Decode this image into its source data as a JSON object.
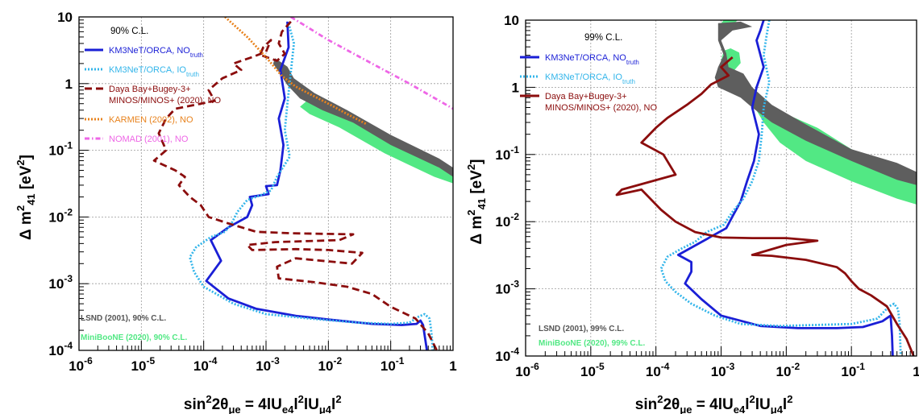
{
  "chart_data": [
    {
      "type": "line",
      "panel": "left",
      "cl_label": "90% C.L.",
      "xlabel": {
        "main": "sin",
        "sup1": "2",
        "main2": "2θ",
        "sub1": "μe",
        "main3": " = 4lU",
        "sub2": "e4",
        "main4": "l",
        "sup2": "2",
        "main5": "lU",
        "sub3": "μ4",
        "main6": "l",
        "sup3": "2"
      },
      "ylabel": {
        "main": "Δ m",
        "sup": "2",
        "sub": "41",
        "unit": " [eV",
        "unitsup": "2",
        "close": "]"
      },
      "xscale": "log",
      "yscale": "log",
      "xlim": [
        1e-06,
        1
      ],
      "ylim": [
        0.0001,
        10
      ],
      "xticks": [
        {
          "base": "10",
          "exp": "-6"
        },
        {
          "base": "10",
          "exp": "-5"
        },
        {
          "base": "10",
          "exp": "-4"
        },
        {
          "base": "10",
          "exp": "-3"
        },
        {
          "base": "10",
          "exp": "-2"
        },
        {
          "base": "10",
          "exp": "-1"
        },
        {
          "base": "1",
          "exp": ""
        }
      ],
      "yticks": [
        {
          "base": "10",
          "exp": "-4"
        },
        {
          "base": "10",
          "exp": "-3"
        },
        {
          "base": "10",
          "exp": "-2"
        },
        {
          "base": "10",
          "exp": "-1"
        },
        {
          "base": "1",
          "exp": ""
        },
        {
          "base": "10",
          "exp": ""
        }
      ],
      "grid": true,
      "legend": [
        {
          "label": "KM3NeT/ORCA, NO",
          "sub": "truth",
          "color": "#1a1fd6",
          "dash": "solid"
        },
        {
          "label": "KM3NeT/ORCA, IO",
          "sub": "truth",
          "color": "#33b5ea",
          "dash": "dotted"
        },
        {
          "label": "Daya Bay+Bugey-3+",
          "label2": "MINOS/MINOS+ (2020), NO",
          "color": "#8b0d0d",
          "dash": "dashed"
        },
        {
          "label": "KARMEN (2002), NO",
          "color": "#e8821c",
          "dash": "dotted",
          "textcolor": "#e8821c"
        },
        {
          "label": "NOMAD (2001), NO",
          "color": "#ee66e6",
          "dash": "dashdot",
          "textcolor": "#ee66e6"
        }
      ],
      "notes": [
        {
          "text": "LSND (2001), 90% C.L.",
          "color": "#555555"
        },
        {
          "text": "MiniBooNE (2020), 90% C.L.",
          "color": "#52e884"
        }
      ],
      "series": [
        {
          "name": "KM3NeT/ORCA, NO",
          "color": "#1a1fd6",
          "x": [
            0.0022,
            0.0023,
            0.0017,
            0.002,
            0.0016,
            0.0019,
            0.0017,
            0.0015,
            0.001,
            0.0011,
            0.00055,
            0.0006,
            0.0005,
            0.00025,
            0.00013,
            0.00019,
            0.00011,
            0.00025,
            0.0007,
            0.003,
            0.01,
            0.05,
            0.15,
            0.26,
            0.3,
            0.33,
            0.35,
            0.37,
            0.38
          ],
          "y": [
            8.5,
            3.5,
            1.6,
            0.6,
            0.3,
            0.12,
            0.05,
            0.03,
            0.029,
            0.022,
            0.02,
            0.015,
            0.01,
            0.007,
            0.0045,
            0.0022,
            0.0011,
            0.0006,
            0.00042,
            0.00033,
            0.00029,
            0.00025,
            0.00024,
            0.00025,
            0.00028,
            0.00024,
            0.00017,
            0.00012,
            0.0001
          ]
        },
        {
          "name": "KM3NeT/ORCA, IO",
          "color": "#33b5ea",
          "x": [
            0.0023,
            0.0028,
            0.0025,
            0.0022,
            0.002,
            0.0024,
            0.0015,
            0.0012,
            0.0008,
            0.0005,
            0.00035,
            0.00028,
            0.00022,
            0.00013,
            7.5e-05,
            6e-05,
            7e-05,
            0.0001,
            0.0003,
            0.001,
            0.005,
            0.03,
            0.1,
            0.2,
            0.28,
            0.35,
            0.42,
            0.44,
            0.46,
            0.47
          ],
          "y": [
            8,
            4,
            1.5,
            0.5,
            0.2,
            0.08,
            0.04,
            0.025,
            0.021,
            0.018,
            0.012,
            0.008,
            0.006,
            0.005,
            0.0035,
            0.0025,
            0.0015,
            0.0009,
            0.0005,
            0.00035,
            0.0003,
            0.00026,
            0.00025,
            0.00026,
            0.00032,
            0.00035,
            0.0003,
            0.00022,
            0.00015,
            0.0001
          ]
        },
        {
          "name": "Daya Bay+Bugey-3+ MINOS/MINOS+ (2020), NO",
          "color": "#8b0d0d",
          "x": [
            0.0025,
            0.0018,
            0.0016,
            0.002,
            0.0015,
            0.0008,
            0.0009,
            0.0012,
            0.001,
            0.0006,
            0.0003,
            0.0004,
            0.0002,
            0.00012,
            0.00015,
            3.5e-05,
            2.5e-05,
            1.9e-05,
            2.5e-05,
            1.6e-05,
            3.5e-05,
            5e-05,
            4e-05,
            6e-05,
            9e-05,
            0.00012,
            0.00025,
            0.0007,
            0.0025,
            0.008,
            0.025,
            0.015,
            0.0014,
            0.0005,
            0.0006,
            0.003,
            0.01,
            0.035,
            0.024,
            0.003,
            0.0015,
            0.0016,
            0.006,
            0.02,
            0.05,
            0.1,
            0.25,
            0.4,
            0.55
          ],
          "y": [
            8.5,
            6,
            4,
            2.8,
            2.2,
            2.7,
            3.5,
            4.5,
            3.0,
            2.5,
            2.0,
            1.6,
            1.2,
            0.8,
            0.55,
            0.42,
            0.3,
            0.18,
            0.1,
            0.07,
            0.05,
            0.04,
            0.03,
            0.02,
            0.015,
            0.01,
            0.008,
            0.006,
            0.0057,
            0.0056,
            0.0055,
            0.0045,
            0.0042,
            0.0038,
            0.0032,
            0.0033,
            0.0032,
            0.0029,
            0.002,
            0.0024,
            0.0018,
            0.0012,
            0.00105,
            0.0009,
            0.0007,
            0.00045,
            0.0003,
            0.00018,
            0.0001
          ]
        },
        {
          "name": "KARMEN (2002), NO",
          "color": "#e8821c",
          "x": [
            0.00022,
            0.0005,
            0.001,
            0.0018,
            0.003,
            0.005,
            0.01,
            0.02,
            0.04
          ],
          "y": [
            10,
            5,
            2.5,
            1.3,
            0.9,
            0.7,
            0.5,
            0.35,
            0.25
          ]
        },
        {
          "name": "NOMAD (2001), NO",
          "color": "#ee66e6",
          "x": [
            0.0025,
            0.01,
            0.05,
            0.2,
            1
          ],
          "y": [
            10,
            4.5,
            2.0,
            1.0,
            0.42
          ]
        }
      ]
    },
    {
      "type": "line",
      "panel": "right",
      "cl_label": "99% C.L.",
      "xlabel": {
        "main": "sin",
        "sup1": "2",
        "main2": "2θ",
        "sub1": "μe",
        "main3": " = 4lU",
        "sub2": "e4",
        "main4": "l",
        "sup2": "2",
        "main5": "lU",
        "sub3": "μ4",
        "main6": "l",
        "sup3": "2"
      },
      "ylabel": {
        "main": "Δ m",
        "sup": "2",
        "sub": "41",
        "unit": " [eV",
        "unitsup": "2",
        "close": "]"
      },
      "xscale": "log",
      "yscale": "log",
      "xlim": [
        1e-06,
        1
      ],
      "ylim": [
        0.0001,
        10
      ],
      "xticks": [
        {
          "base": "10",
          "exp": "-6"
        },
        {
          "base": "10",
          "exp": "-5"
        },
        {
          "base": "10",
          "exp": "-4"
        },
        {
          "base": "10",
          "exp": "-3"
        },
        {
          "base": "10",
          "exp": "-2"
        },
        {
          "base": "10",
          "exp": "-1"
        },
        {
          "base": "1",
          "exp": ""
        }
      ],
      "yticks": [
        {
          "base": "10",
          "exp": "-4"
        },
        {
          "base": "10",
          "exp": "-3"
        },
        {
          "base": "10",
          "exp": "-2"
        },
        {
          "base": "10",
          "exp": "-1"
        },
        {
          "base": "1",
          "exp": ""
        },
        {
          "base": "10",
          "exp": ""
        }
      ],
      "grid": true,
      "legend": [
        {
          "label": "KM3NeT/ORCA, NO",
          "sub": "truth",
          "color": "#1a1fd6",
          "dash": "solid"
        },
        {
          "label": "KM3NeT/ORCA, IO",
          "sub": "truth",
          "color": "#33b5ea",
          "dash": "dotted"
        },
        {
          "label": "Daya Bay+Bugey-3+",
          "label2": "MINOS/MINOS+ (2020), NO",
          "color": "#8b0d0d",
          "dash": "solid"
        }
      ],
      "notes": [
        {
          "text": "LSND (2001), 99% C.L.",
          "color": "#555555"
        },
        {
          "text": "MiniBooNE (2020), 99% C.L.",
          "color": "#52e884"
        }
      ],
      "series": [
        {
          "name": "KM3NeT/ORCA, NO",
          "color": "#1a1fd6",
          "x": [
            0.0045,
            0.004,
            0.0035,
            0.0045,
            0.0035,
            0.003,
            0.0038,
            0.0032,
            0.0025,
            0.002,
            0.0015,
            0.0012,
            0.0007,
            0.0006,
            0.00022,
            0.00035,
            0.00035,
            0.00028,
            0.0005,
            0.001,
            0.004,
            0.015,
            0.06,
            0.15,
            0.3,
            0.4,
            0.42,
            0.43
          ],
          "y": [
            10,
            7,
            5,
            2,
            1,
            0.5,
            0.2,
            0.08,
            0.04,
            0.02,
            0.012,
            0.008,
            0.006,
            0.0055,
            0.0032,
            0.0025,
            0.0018,
            0.0012,
            0.0007,
            0.0004,
            0.00028,
            0.00026,
            0.00026,
            0.00027,
            0.00033,
            0.0004,
            0.0002,
            0.0001
          ]
        },
        {
          "name": "KM3NeT/ORCA, IO",
          "color": "#33b5ea",
          "x": [
            0.0055,
            0.005,
            0.0045,
            0.0055,
            0.0045,
            0.0042,
            0.0038,
            0.003,
            0.0022,
            0.0015,
            0.0011,
            0.0006,
            0.0004,
            0.00025,
            0.00015,
            0.00012,
            0.00014,
            0.0002,
            0.00035,
            0.0008,
            0.002,
            0.008,
            0.03,
            0.1,
            0.25,
            0.38,
            0.45,
            0.52,
            0.55,
            0.57
          ],
          "y": [
            10,
            6,
            3,
            1.2,
            0.5,
            0.2,
            0.08,
            0.04,
            0.022,
            0.014,
            0.009,
            0.007,
            0.005,
            0.004,
            0.003,
            0.002,
            0.0013,
            0.0009,
            0.0006,
            0.0004,
            0.0003,
            0.00028,
            0.00029,
            0.0003,
            0.00036,
            0.00055,
            0.0006,
            0.0005,
            0.0003,
            0.0001
          ]
        },
        {
          "name": "Daya Bay+Bugey-3+ MINOS/MINOS+ (2020), NO",
          "color": "#8b0d0d",
          "x": [
            0.0015,
            0.001,
            0.0013,
            0.0007,
            0.0005,
            0.0003,
            0.00015,
            0.0001,
            6e-05,
            0.00013,
            0.0002,
            3e-05,
            2.5e-05,
            6e-05,
            0.00012,
            0.0002,
            0.0004,
            0.001,
            0.003,
            0.01,
            0.03,
            0.01,
            0.003,
            0.006,
            0.02,
            0.06,
            0.08,
            0.1,
            0.13,
            0.2,
            0.35,
            0.5,
            0.7,
            0.9
          ],
          "y": [
            2.8,
            2.0,
            1.5,
            1.1,
            0.8,
            0.55,
            0.35,
            0.25,
            0.15,
            0.1,
            0.05,
            0.03,
            0.025,
            0.03,
            0.015,
            0.01,
            0.007,
            0.0058,
            0.0057,
            0.0057,
            0.0052,
            0.0045,
            0.0032,
            0.0031,
            0.0027,
            0.0021,
            0.0017,
            0.0013,
            0.001,
            0.0008,
            0.00055,
            0.0003,
            0.00018,
            0.0001
          ]
        }
      ]
    }
  ]
}
